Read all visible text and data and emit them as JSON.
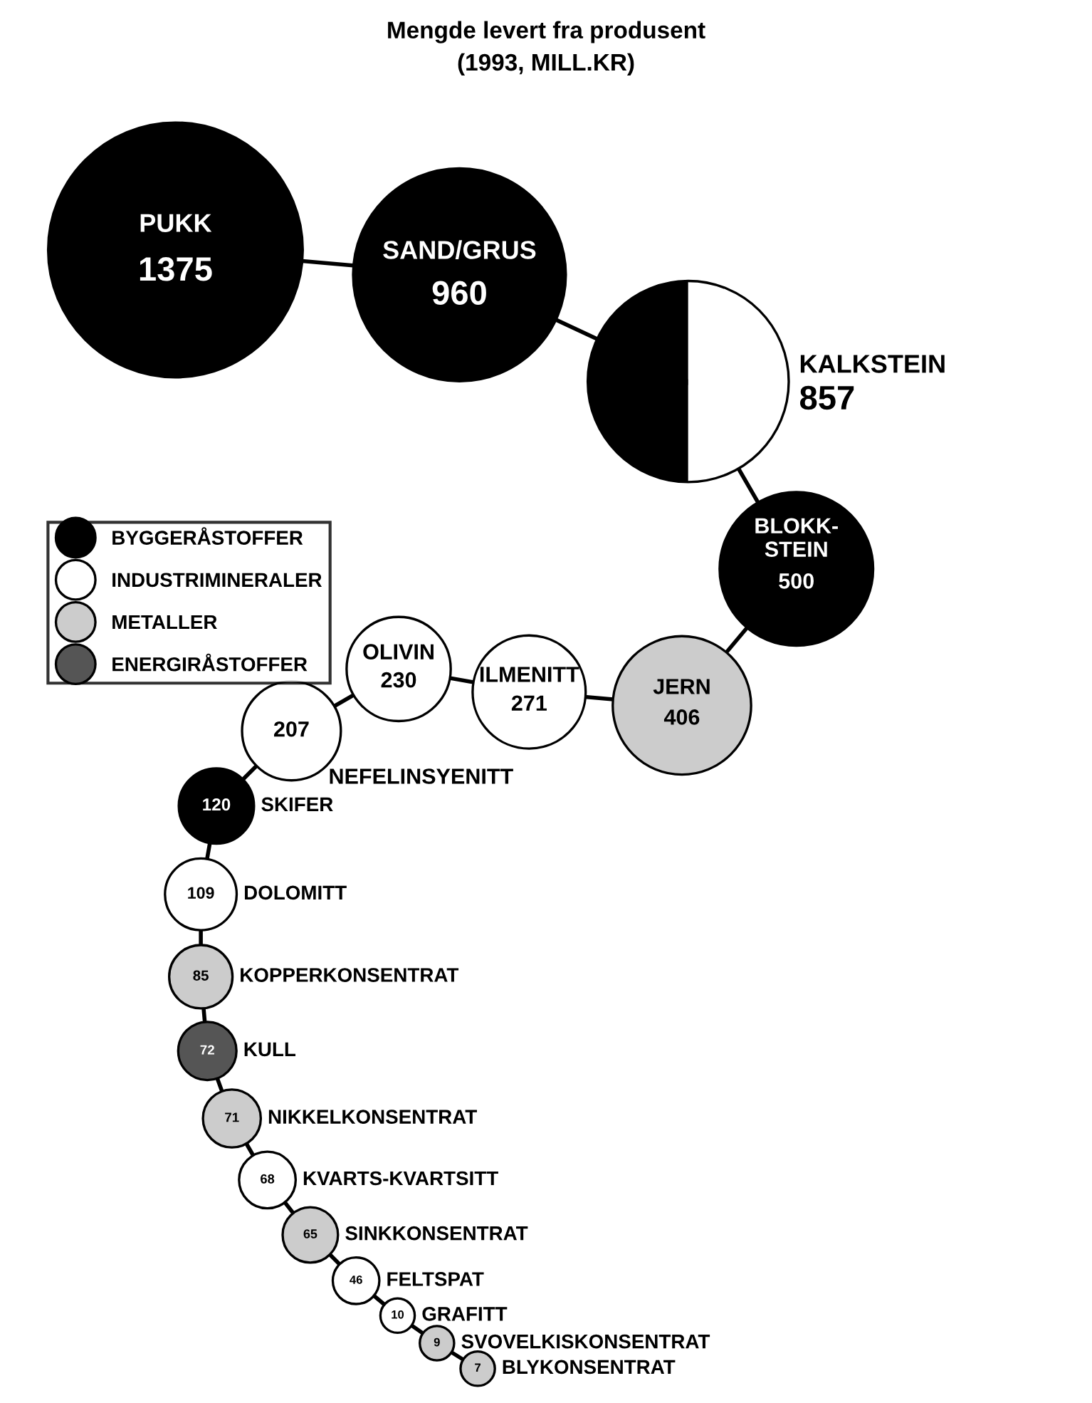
{
  "chart_data": {
    "type": "other",
    "title": "Mengde levert fra produsent",
    "subtitle": "(1993, MILL.KR)",
    "categories": [
      "PUKK",
      "SAND/GRUS",
      "KALKSTEIN",
      "BLOKK-\nSTEIN",
      "JERN",
      "ILMENITT",
      "OLIVIN",
      "NEFELINSYENITT",
      "SKIFER",
      "DOLOMITT",
      "KOPPERKONSENTRAT",
      "KULL",
      "NIKKELKONSENTRAT",
      "KVARTS-KVARTSITT",
      "SINKKONSENTRAT",
      "FELTSPAT",
      "GRAFITT",
      "SVOVELKISKONSENTRAT",
      "BLYKONSENTRAT"
    ],
    "series": [
      {
        "name": "BYGGERÅSTOFFER",
        "color": "#000000",
        "values": [
          1375,
          960,
          857,
          500,
          null,
          null,
          null,
          null,
          120,
          null,
          null,
          null,
          null,
          null,
          null,
          null,
          null,
          null,
          null
        ]
      },
      {
        "name": "INDUSTRIMINERALER",
        "color": "#ffffff",
        "values": [
          null,
          null,
          null,
          null,
          null,
          271,
          230,
          207,
          null,
          109,
          null,
          null,
          null,
          68,
          null,
          46,
          10,
          null,
          null
        ]
      },
      {
        "name": "METALLER",
        "color": "#cccccc",
        "values": [
          null,
          null,
          null,
          null,
          406,
          null,
          null,
          null,
          null,
          null,
          85,
          null,
          71,
          null,
          65,
          null,
          null,
          9,
          7
        ]
      },
      {
        "name": "ENERGIRÅSTOFFER",
        "color": "#555555",
        "values": [
          null,
          null,
          null,
          null,
          null,
          null,
          null,
          null,
          null,
          null,
          null,
          72,
          null,
          null,
          null,
          null,
          null,
          null,
          null
        ]
      }
    ],
    "colors": [
      "#000000",
      "#000000",
      [
        "#000000",
        "#ffffff"
      ],
      "#000000",
      "#cccccc",
      "#ffffff",
      "#ffffff",
      "#ffffff",
      "#000000",
      "#ffffff",
      "#cccccc",
      "#555555",
      "#cccccc",
      "#ffffff",
      "#cccccc",
      "#ffffff",
      "#ffffff",
      "#cccccc",
      "#cccccc"
    ],
    "data_labels": true,
    "legend": "left"
  }
}
